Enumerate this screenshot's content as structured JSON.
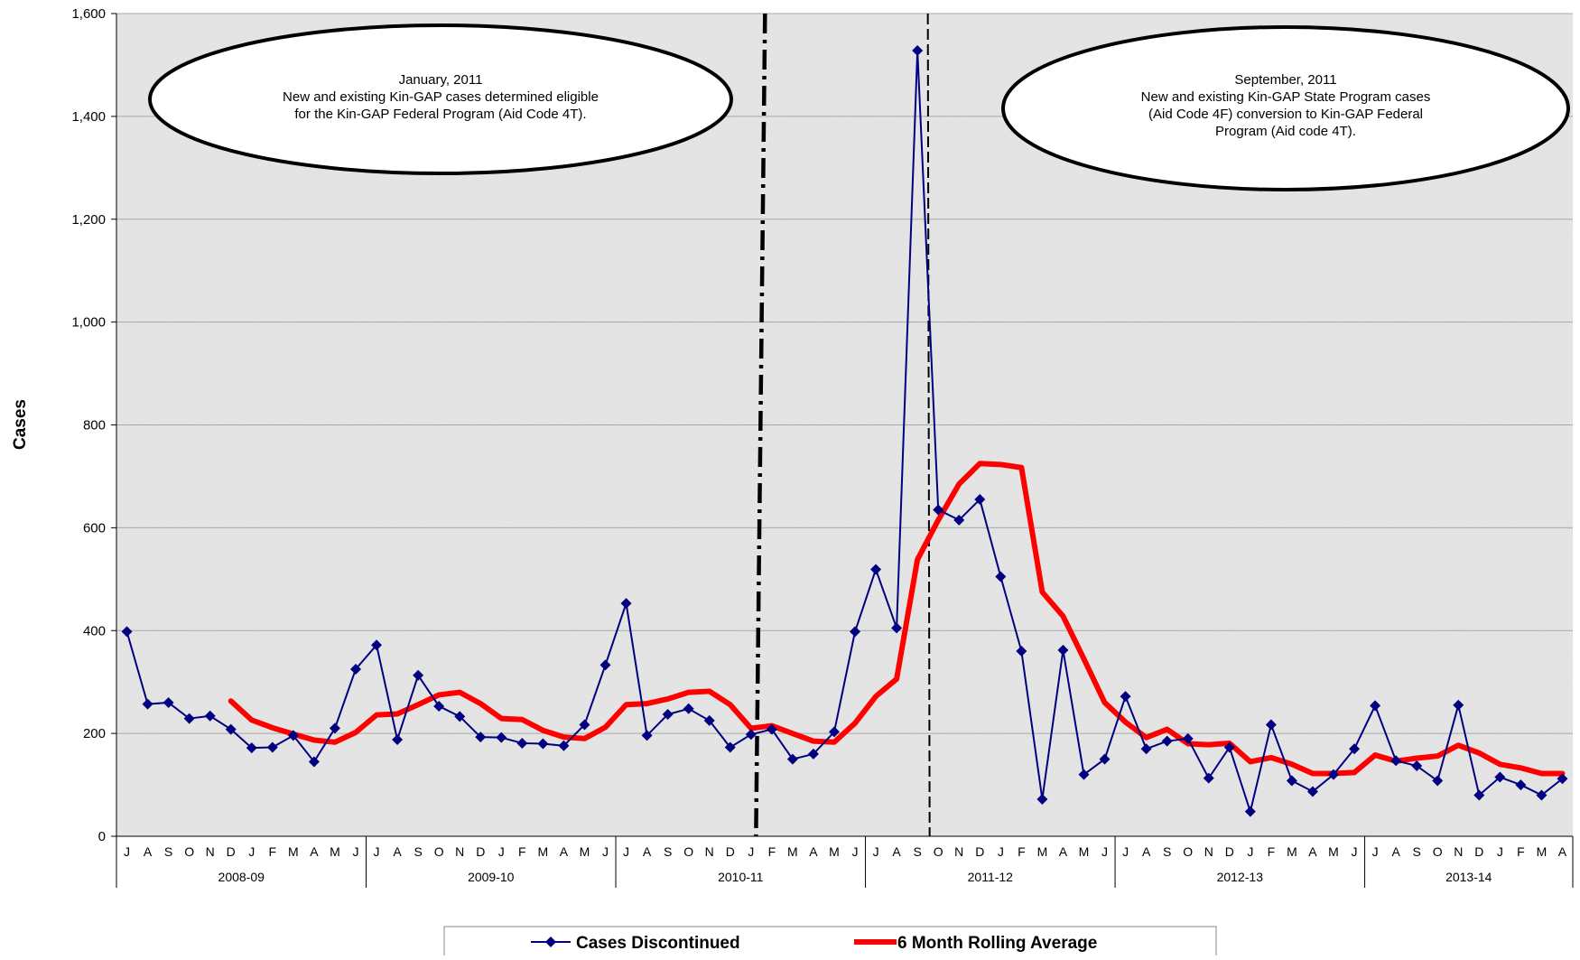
{
  "chart_data": {
    "type": "line",
    "ylabel": "Cases",
    "xlabel": "",
    "ylim": [
      0,
      1600
    ],
    "yticks": [
      0,
      200,
      400,
      600,
      800,
      1000,
      1200,
      1400,
      1600
    ],
    "ytick_labels": [
      "0",
      "200",
      "400",
      "600",
      "800",
      "1,000",
      "1,200",
      "1,400",
      "1,600"
    ],
    "grid": true,
    "legend_position": "bottom-center",
    "month_labels": [
      "J",
      "A",
      "S",
      "O",
      "N",
      "D",
      "J",
      "F",
      "M",
      "A",
      "M",
      "J",
      "J",
      "A",
      "S",
      "O",
      "N",
      "D",
      "J",
      "F",
      "M",
      "A",
      "M",
      "J",
      "J",
      "A",
      "S",
      "O",
      "N",
      "D",
      "J",
      "F",
      "M",
      "A",
      "M",
      "J",
      "J",
      "A",
      "S",
      "O",
      "N",
      "D",
      "J",
      "F",
      "M",
      "A",
      "M",
      "J",
      "J",
      "A",
      "S",
      "O",
      "N",
      "D",
      "J",
      "F",
      "M",
      "A",
      "M",
      "J",
      "J",
      "A",
      "S",
      "O",
      "N",
      "D",
      "J",
      "F",
      "M",
      "A"
    ],
    "fiscal_years": [
      {
        "label": "2008-09",
        "start": 0,
        "end": 11
      },
      {
        "label": "2009-10",
        "start": 12,
        "end": 23
      },
      {
        "label": "2010-11",
        "start": 24,
        "end": 35
      },
      {
        "label": "2011-12",
        "start": 36,
        "end": 47
      },
      {
        "label": "2012-13",
        "start": 48,
        "end": 59
      },
      {
        "label": "2013-14",
        "start": 60,
        "end": 69
      }
    ],
    "series": [
      {
        "name": "Cases Discontinued",
        "color": "#000080",
        "marker": "diamond",
        "values": [
          398,
          257,
          260,
          229,
          234,
          208,
          172,
          173,
          196,
          145,
          210,
          325,
          372,
          188,
          313,
          253,
          233,
          193,
          192,
          181,
          180,
          176,
          217,
          333,
          453,
          196,
          237,
          248,
          225,
          173,
          198,
          208,
          150,
          160,
          203,
          398,
          519,
          405,
          1528,
          635,
          615,
          655,
          505,
          360,
          72,
          362,
          120,
          150,
          272,
          170,
          185,
          190,
          113,
          173,
          48,
          217,
          108,
          87,
          120,
          170,
          254,
          147,
          137,
          108,
          255,
          80,
          115,
          100,
          80,
          112
        ]
      },
      {
        "name": "6 Month Rolling Average",
        "color": "#ff0000",
        "values": [
          null,
          null,
          null,
          null,
          null,
          263,
          226,
          211,
          199,
          187,
          183,
          202,
          236,
          238,
          256,
          275,
          280,
          258,
          229,
          227,
          206,
          193,
          190,
          212,
          256,
          258,
          267,
          280,
          282,
          256,
          210,
          215,
          200,
          185,
          183,
          220,
          272,
          306,
          538,
          615,
          685,
          725,
          723,
          717,
          475,
          428,
          345,
          260,
          222,
          192,
          208,
          180,
          178,
          181,
          145,
          153,
          140,
          122,
          122,
          124,
          158,
          146,
          152,
          156,
          177,
          162,
          140,
          133,
          122,
          122
        ]
      }
    ],
    "vertical_markers": [
      {
        "index": 30.5,
        "style": "dash-dot",
        "color": "#000000"
      },
      {
        "index": 38.5,
        "style": "dashed",
        "color": "#000000"
      }
    ],
    "annotations": [
      {
        "lines": [
          "January, 2011",
          "New and existing Kin-GAP cases determined eligible",
          "for the Kin-GAP Federal Program (Aid Code 4T)."
        ]
      },
      {
        "lines": [
          "September, 2011",
          "New and existing Kin-GAP State Program cases",
          "(Aid Code 4F) conversion to Kin-GAP Federal",
          "Program (Aid code 4T)."
        ]
      }
    ]
  },
  "colors": {
    "plot_background": "#e2e2e2",
    "gridline": "#a8a8a8"
  }
}
